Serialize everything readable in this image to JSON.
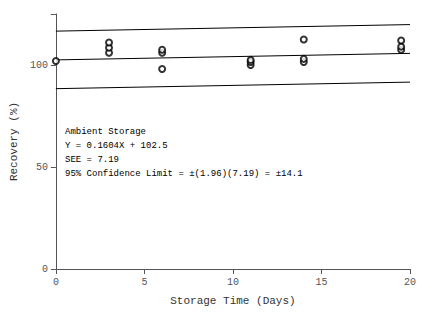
{
  "chart_data": {
    "type": "scatter",
    "title": "",
    "xlabel": "Storage Time (Days)",
    "ylabel": "Recovery (%)",
    "xlim": [
      0,
      20
    ],
    "ylim": [
      0,
      125
    ],
    "xticks": [
      0,
      5,
      10,
      15,
      20
    ],
    "yticks": [
      0,
      50,
      100
    ],
    "grid": false,
    "series": [
      {
        "type": "scatter",
        "marker": "circle_open",
        "color": "#000000",
        "x": [
          0.0,
          3.0,
          3.0,
          3.0,
          6.0,
          6.0,
          6.0,
          11.0,
          11.0,
          11.0,
          14.0,
          14.0,
          14.0,
          19.5,
          19.5,
          19.5
        ],
        "values": [
          102.0,
          106.0,
          108.5,
          111.0,
          106.0,
          107.5,
          98.0,
          100.0,
          101.5,
          102.5,
          101.5,
          103.0,
          112.5,
          107.5,
          109.0,
          112.0
        ]
      },
      {
        "type": "line",
        "color": "#000000",
        "x": [
          0,
          20
        ],
        "values": [
          102.5,
          105.708
        ]
      },
      {
        "type": "line",
        "color": "#000000",
        "x": [
          0,
          20
        ],
        "values": [
          116.6,
          119.808
        ]
      },
      {
        "type": "line",
        "color": "#000000",
        "x": [
          0,
          20
        ],
        "values": [
          88.4,
          91.608
        ]
      }
    ],
    "annotations": [
      "Ambient Storage",
      "Y = 0.1604X + 102.5",
      "SEE = 7.19",
      "95% Confidence Limit = ±(1.96)(7.19) = ±14.1"
    ]
  }
}
